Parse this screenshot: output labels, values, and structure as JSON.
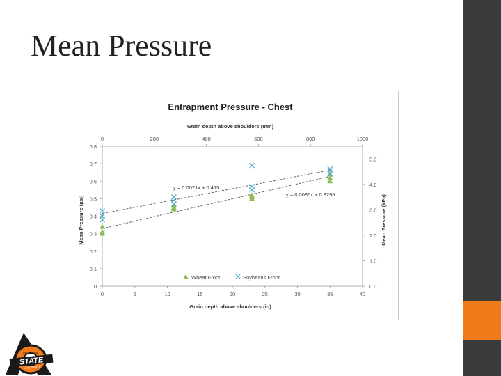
{
  "slide": {
    "title": "Mean Pressure"
  },
  "colors": {
    "wheat": "#8fbd5a",
    "soybeans": "#4aa8c8",
    "bar": "#3a3a3a",
    "accent": "#f07b1a"
  },
  "logo": {
    "text_top": "OKLAHOMA",
    "text_main": "STATE",
    "text_bottom": "UNIVERSITY",
    "icon": "osu-brand-logo"
  },
  "chart_data": {
    "type": "scatter",
    "title": "Entrapment Pressure - Chest",
    "xlabel": "Grain depth above shoulders (in)",
    "x2label": "Grain depth above shoulders (mm)",
    "ylabel": "Mean Pressure (psi)",
    "y2label": "Mean Pressure (kPa)",
    "xlim": [
      0,
      40
    ],
    "ylim": [
      0,
      0.8
    ],
    "x2lim": [
      0,
      1000
    ],
    "y2lim": [
      0,
      5.5
    ],
    "xticks": [
      "0",
      "5",
      "10",
      "15",
      "20",
      "25",
      "30",
      "35",
      "40"
    ],
    "yticks": [
      "0",
      "0.1",
      "0.2",
      "0.3",
      "0.4",
      "0.5",
      "0.6",
      "0.7",
      "0.8"
    ],
    "x2ticks": [
      "0",
      "200",
      "400",
      "600",
      "800",
      "1000"
    ],
    "y2ticks": [
      "0.0",
      "1.0",
      "2.0",
      "3.0",
      "4.0",
      "5.0"
    ],
    "legend_position": "bottom-inside",
    "grid": false,
    "series": [
      {
        "name": "Wheat Front",
        "marker": "triangle",
        "points": [
          [
            0,
            0.3
          ],
          [
            0,
            0.31
          ],
          [
            0,
            0.34
          ],
          [
            11,
            0.44
          ],
          [
            11,
            0.45
          ],
          [
            11,
            0.46
          ],
          [
            23,
            0.5
          ],
          [
            23,
            0.51
          ],
          [
            23,
            0.52
          ],
          [
            35,
            0.6
          ],
          [
            35,
            0.62
          ],
          [
            35,
            0.64
          ]
        ]
      },
      {
        "name": "Soybeans Front",
        "marker": "x",
        "points": [
          [
            0,
            0.38
          ],
          [
            0,
            0.4
          ],
          [
            0,
            0.43
          ],
          [
            11,
            0.47
          ],
          [
            11,
            0.49
          ],
          [
            11,
            0.51
          ],
          [
            23,
            0.55
          ],
          [
            23,
            0.57
          ],
          [
            23,
            0.69
          ],
          [
            35,
            0.64
          ],
          [
            35,
            0.66
          ],
          [
            35,
            0.67
          ]
        ]
      }
    ],
    "trendlines": [
      {
        "equation": "y = 0.0071x + 0.415",
        "slope": 0.0071,
        "intercept": 0.415
      },
      {
        "equation": "y = 0.0085x + 0.3295",
        "slope": 0.0085,
        "intercept": 0.3295
      }
    ]
  }
}
